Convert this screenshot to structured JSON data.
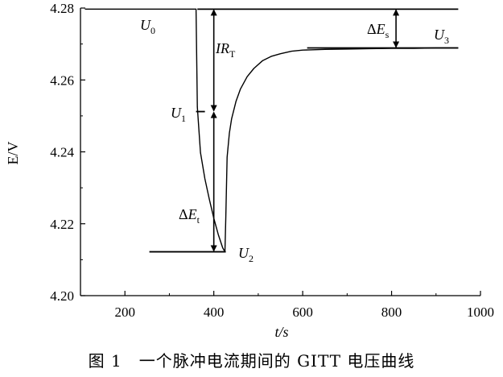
{
  "chart_data": {
    "type": "line",
    "xlabel": "t/s",
    "ylabel": "E/V",
    "xlim": [
      100,
      1000
    ],
    "ylim": [
      4.2,
      4.28
    ],
    "x_ticks": [
      200,
      400,
      600,
      800,
      1000
    ],
    "y_ticks": [
      4.2,
      4.22,
      4.24,
      4.26,
      4.28
    ],
    "x_tick_labels": [
      "200",
      "400",
      "600",
      "800",
      "1000"
    ],
    "y_tick_labels": [
      "4.20",
      "4.22",
      "4.24",
      "4.26",
      "4.28"
    ],
    "series": [
      {
        "x": [
          110,
          200,
          300,
          360,
          363,
          370,
          380,
          390,
          400,
          410,
          420,
          425,
          427,
          430,
          435,
          440,
          450,
          460,
          475,
          490,
          510,
          530,
          550,
          575,
          600,
          650,
          700,
          750,
          800,
          850,
          900,
          950
        ],
        "y": [
          4.2797,
          4.2797,
          4.2797,
          4.2797,
          4.2525,
          4.2398,
          4.2325,
          4.2268,
          4.2215,
          4.217,
          4.2133,
          4.2122,
          4.222,
          4.2385,
          4.2452,
          4.2492,
          4.2541,
          4.2575,
          4.2609,
          4.2632,
          4.2654,
          4.2666,
          4.2673,
          4.268,
          4.2683,
          4.2685,
          4.2686,
          4.2687,
          4.2688,
          4.2688,
          4.2689,
          4.2689
        ]
      }
    ],
    "annotations": {
      "U0": {
        "letter": "U",
        "sub": "0"
      },
      "U1": {
        "letter": "U",
        "sub": "1"
      },
      "U2": {
        "letter": "U",
        "sub": "2"
      },
      "U3": {
        "letter": "U",
        "sub": "3"
      },
      "IRT": {
        "letter": "IR",
        "sub": "T"
      },
      "dEs": {
        "delta": "Δ",
        "letter": "E",
        "sub": "s"
      },
      "dEt": {
        "delta": "Δ",
        "letter": "E",
        "sub": "t"
      }
    },
    "levels": {
      "U0": 4.2797,
      "U1": 4.2512,
      "U2": 4.2122,
      "U3": 4.2689
    },
    "grid": false,
    "legend": "none"
  },
  "caption": "图 1　一个脉冲电流期间的 GITT 电压曲线"
}
